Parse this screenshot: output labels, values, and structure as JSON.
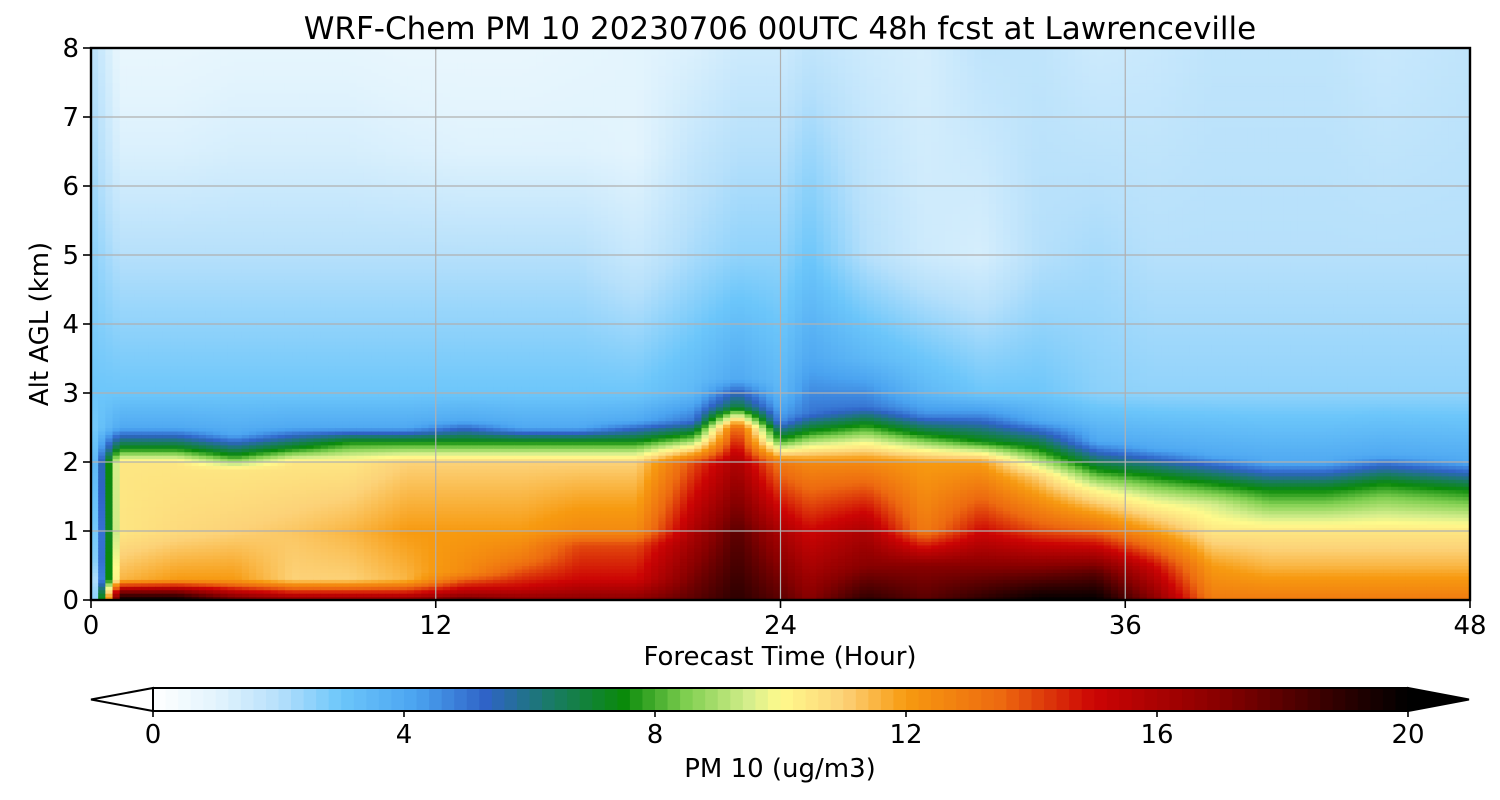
{
  "chart_data": {
    "type": "heatmap",
    "title": "WRF-Chem PM 10  20230706 00UTC 48h fcst at Lawrenceville",
    "xlabel": "Forecast Time (Hour)",
    "ylabel": "Alt AGL (km)",
    "xlim": [
      0,
      48
    ],
    "ylim": [
      0,
      8
    ],
    "x_ticks": [
      "0",
      "12",
      "24",
      "36",
      "48"
    ],
    "y_ticks": [
      "0",
      "1",
      "2",
      "3",
      "4",
      "5",
      "6",
      "7",
      "8"
    ],
    "grid": true,
    "colorbar": {
      "label": "PM 10  (ug/m3)",
      "range": [
        0,
        20
      ],
      "ticks": [
        "0",
        "4",
        "8",
        "12",
        "16",
        "20"
      ],
      "extend": "both",
      "placement": "bottom"
    },
    "x": [
      0,
      1,
      3,
      5,
      7,
      9,
      11,
      13,
      15,
      17,
      19,
      21,
      22.5,
      24,
      25,
      27,
      29,
      31,
      33,
      35,
      37,
      39,
      41,
      43,
      45,
      48
    ],
    "profiles": [
      [
        [
          0,
          0
        ],
        [
          0.2,
          0.5
        ],
        [
          0.6,
          1.5
        ],
        [
          2,
          2.5
        ],
        [
          3,
          3
        ],
        [
          8,
          2
        ]
      ],
      [
        [
          0,
          20
        ],
        [
          0.1,
          18
        ],
        [
          0.3,
          11.5
        ],
        [
          1,
          10.5
        ],
        [
          2,
          10.5
        ],
        [
          2.2,
          7.5
        ],
        [
          2.5,
          4
        ],
        [
          3,
          3
        ],
        [
          5,
          2
        ],
        [
          6.5,
          1.2
        ],
        [
          8,
          0.8
        ]
      ],
      [
        [
          0,
          20
        ],
        [
          0.1,
          18
        ],
        [
          0.3,
          12
        ],
        [
          1,
          10.8
        ],
        [
          2,
          10.5
        ],
        [
          2.2,
          7.5
        ],
        [
          2.5,
          4
        ],
        [
          3,
          3
        ],
        [
          5,
          2
        ],
        [
          6.5,
          1.2
        ],
        [
          8,
          0.8
        ]
      ],
      [
        [
          0,
          18
        ],
        [
          0.1,
          16
        ],
        [
          0.3,
          12
        ],
        [
          1,
          11
        ],
        [
          1.9,
          10.5
        ],
        [
          2.1,
          7.5
        ],
        [
          2.4,
          4
        ],
        [
          3,
          3
        ],
        [
          5,
          2
        ],
        [
          6.5,
          1.3
        ],
        [
          8,
          0.9
        ]
      ],
      [
        [
          0,
          17
        ],
        [
          0.1,
          15
        ],
        [
          0.3,
          11
        ],
        [
          1,
          11.2
        ],
        [
          2,
          10.5
        ],
        [
          2.2,
          7.5
        ],
        [
          2.5,
          4
        ],
        [
          3,
          3
        ],
        [
          5,
          2
        ],
        [
          6.5,
          1.3
        ],
        [
          8,
          0.9
        ]
      ],
      [
        [
          0,
          17
        ],
        [
          0.1,
          15
        ],
        [
          0.3,
          11
        ],
        [
          1,
          11.5
        ],
        [
          2,
          10.5
        ],
        [
          2.3,
          7.5
        ],
        [
          2.5,
          4
        ],
        [
          3,
          3
        ],
        [
          5,
          2
        ],
        [
          6.5,
          1.3
        ],
        [
          8,
          0.9
        ]
      ],
      [
        [
          0,
          17
        ],
        [
          0.1,
          15
        ],
        [
          0.3,
          11.5
        ],
        [
          1,
          12
        ],
        [
          2,
          11
        ],
        [
          2.3,
          7.5
        ],
        [
          2.5,
          4
        ],
        [
          3,
          3
        ],
        [
          5,
          2
        ],
        [
          6.5,
          1.2
        ],
        [
          8,
          0.8
        ]
      ],
      [
        [
          0,
          18
        ],
        [
          0.1,
          16
        ],
        [
          0.4,
          12.5
        ],
        [
          1,
          12
        ],
        [
          2,
          11
        ],
        [
          2.3,
          7.5
        ],
        [
          2.6,
          4
        ],
        [
          3,
          3
        ],
        [
          5,
          2
        ],
        [
          6.5,
          1.1
        ],
        [
          8,
          0.8
        ]
      ],
      [
        [
          0,
          17
        ],
        [
          0.2,
          15
        ],
        [
          0.6,
          13
        ],
        [
          1,
          12
        ],
        [
          2,
          11
        ],
        [
          2.3,
          7.5
        ],
        [
          2.5,
          4
        ],
        [
          3,
          3
        ],
        [
          5,
          2
        ],
        [
          6.5,
          1.1
        ],
        [
          8,
          0.8
        ]
      ],
      [
        [
          0,
          17
        ],
        [
          0.3,
          15
        ],
        [
          0.8,
          14
        ],
        [
          1,
          12.5
        ],
        [
          2,
          11
        ],
        [
          2.3,
          7.5
        ],
        [
          2.5,
          4
        ],
        [
          3,
          3
        ],
        [
          5,
          2
        ],
        [
          6.5,
          1.1
        ],
        [
          8,
          0.9
        ]
      ],
      [
        [
          0,
          17
        ],
        [
          0.3,
          15
        ],
        [
          0.8,
          14
        ],
        [
          1,
          12.5
        ],
        [
          2,
          11
        ],
        [
          2.3,
          7.5
        ],
        [
          2.6,
          4
        ],
        [
          3,
          3
        ],
        [
          5,
          1.6
        ],
        [
          6.5,
          1
        ],
        [
          8,
          1
        ]
      ],
      [
        [
          0,
          18
        ],
        [
          0.5,
          17
        ],
        [
          1,
          16
        ],
        [
          2,
          14
        ],
        [
          2.3,
          9
        ],
        [
          2.6,
          5
        ],
        [
          3,
          3.5
        ],
        [
          5,
          2.2
        ],
        [
          8,
          1.2
        ]
      ],
      [
        [
          0,
          19
        ],
        [
          1,
          18
        ],
        [
          2,
          16
        ],
        [
          2.5,
          14
        ],
        [
          2.8,
          7
        ],
        [
          3.2,
          4
        ],
        [
          5,
          2.5
        ],
        [
          8,
          1.5
        ]
      ],
      [
        [
          0,
          18
        ],
        [
          0.5,
          17
        ],
        [
          1,
          16
        ],
        [
          2,
          13
        ],
        [
          2.3,
          8
        ],
        [
          2.6,
          4.5
        ],
        [
          3,
          3.5
        ],
        [
          5,
          2.5
        ],
        [
          8,
          1.5
        ]
      ],
      [
        [
          0,
          17
        ],
        [
          0.5,
          16
        ],
        [
          1,
          15
        ],
        [
          2,
          12.5
        ],
        [
          2.4,
          8
        ],
        [
          2.7,
          5
        ],
        [
          3.5,
          4
        ],
        [
          5,
          3
        ],
        [
          8,
          1.8
        ]
      ],
      [
        [
          0,
          19
        ],
        [
          0.5,
          17
        ],
        [
          1,
          16
        ],
        [
          2,
          12.5
        ],
        [
          2.5,
          8
        ],
        [
          2.8,
          5
        ],
        [
          3.5,
          3.5
        ],
        [
          5,
          2
        ],
        [
          8,
          1.5
        ]
      ],
      [
        [
          0,
          18
        ],
        [
          0.5,
          17
        ],
        [
          1,
          13
        ],
        [
          2,
          12
        ],
        [
          2.4,
          7.5
        ],
        [
          2.7,
          4.5
        ],
        [
          3,
          3.5
        ],
        [
          5,
          1.5
        ],
        [
          8,
          1.3
        ]
      ],
      [
        [
          0,
          19
        ],
        [
          0.5,
          17
        ],
        [
          1,
          15
        ],
        [
          2,
          12
        ],
        [
          2.3,
          7.5
        ],
        [
          2.7,
          4.5
        ],
        [
          3,
          3
        ],
        [
          5,
          1.3
        ],
        [
          8,
          1.8
        ]
      ],
      [
        [
          0,
          20
        ],
        [
          0.5,
          17
        ],
        [
          1,
          14
        ],
        [
          1.8,
          11
        ],
        [
          2.2,
          7.5
        ],
        [
          2.6,
          4
        ],
        [
          3,
          3
        ],
        [
          5,
          2
        ],
        [
          8,
          1.8
        ]
      ],
      [
        [
          0,
          20
        ],
        [
          0.4,
          18
        ],
        [
          1,
          13.5
        ],
        [
          1.6,
          10
        ],
        [
          1.9,
          7.5
        ],
        [
          2.3,
          4
        ],
        [
          3,
          2.6
        ],
        [
          5,
          2.2
        ],
        [
          8,
          1.5
        ]
      ],
      [
        [
          0,
          17
        ],
        [
          0.5,
          15
        ],
        [
          1,
          12
        ],
        [
          1.5,
          9.5
        ],
        [
          1.8,
          7.5
        ],
        [
          2.2,
          4
        ],
        [
          3,
          2.5
        ],
        [
          5,
          2
        ],
        [
          8,
          1.6
        ]
      ],
      [
        [
          0,
          13
        ],
        [
          0.5,
          12
        ],
        [
          1,
          10.5
        ],
        [
          1.4,
          9.5
        ],
        [
          1.7,
          7.5
        ],
        [
          2.1,
          4
        ],
        [
          3,
          2.5
        ],
        [
          5,
          2
        ],
        [
          8,
          1.8
        ]
      ],
      [
        [
          0,
          13
        ],
        [
          0.5,
          11.5
        ],
        [
          1,
          10.5
        ],
        [
          1.4,
          8.5
        ],
        [
          1.6,
          7.5
        ],
        [
          2,
          4
        ],
        [
          3,
          2.5
        ],
        [
          5,
          2
        ],
        [
          8,
          1.8
        ]
      ],
      [
        [
          0,
          13
        ],
        [
          0.5,
          11.5
        ],
        [
          1,
          10.5
        ],
        [
          1.4,
          8.5
        ],
        [
          1.6,
          7.5
        ],
        [
          2,
          4
        ],
        [
          3,
          2.5
        ],
        [
          5,
          2
        ],
        [
          8,
          1.8
        ]
      ],
      [
        [
          0,
          13
        ],
        [
          0.5,
          11.5
        ],
        [
          1,
          10.5
        ],
        [
          1.5,
          8.5
        ],
        [
          1.7,
          7.5
        ],
        [
          2.1,
          4
        ],
        [
          3,
          2.5
        ],
        [
          5,
          2
        ],
        [
          8,
          1.6
        ]
      ],
      [
        [
          0,
          13
        ],
        [
          0.5,
          11.5
        ],
        [
          1,
          10.5
        ],
        [
          1.4,
          8.5
        ],
        [
          1.6,
          7.5
        ],
        [
          2,
          4
        ],
        [
          3,
          2.5
        ],
        [
          5,
          2
        ],
        [
          8,
          1.8
        ]
      ]
    ],
    "colormap": [
      [
        0,
        "#ffffff"
      ],
      [
        1,
        "#e3f4fd"
      ],
      [
        2,
        "#b6e0fb"
      ],
      [
        3,
        "#6cc6fa"
      ],
      [
        4.2,
        "#4aa3f0"
      ],
      [
        5.3,
        "#2f63c7"
      ],
      [
        6.3,
        "#1a7a6a"
      ],
      [
        7.5,
        "#0a8a0a"
      ],
      [
        8.5,
        "#7fcf50"
      ],
      [
        9.5,
        "#d5ee8c"
      ],
      [
        10,
        "#fffa8c"
      ],
      [
        11,
        "#fcd278"
      ],
      [
        12,
        "#f79a10"
      ],
      [
        13.5,
        "#ed6a10"
      ],
      [
        15,
        "#cc0404"
      ],
      [
        17,
        "#880000"
      ],
      [
        19,
        "#2a0000"
      ],
      [
        20,
        "#000000"
      ]
    ]
  }
}
